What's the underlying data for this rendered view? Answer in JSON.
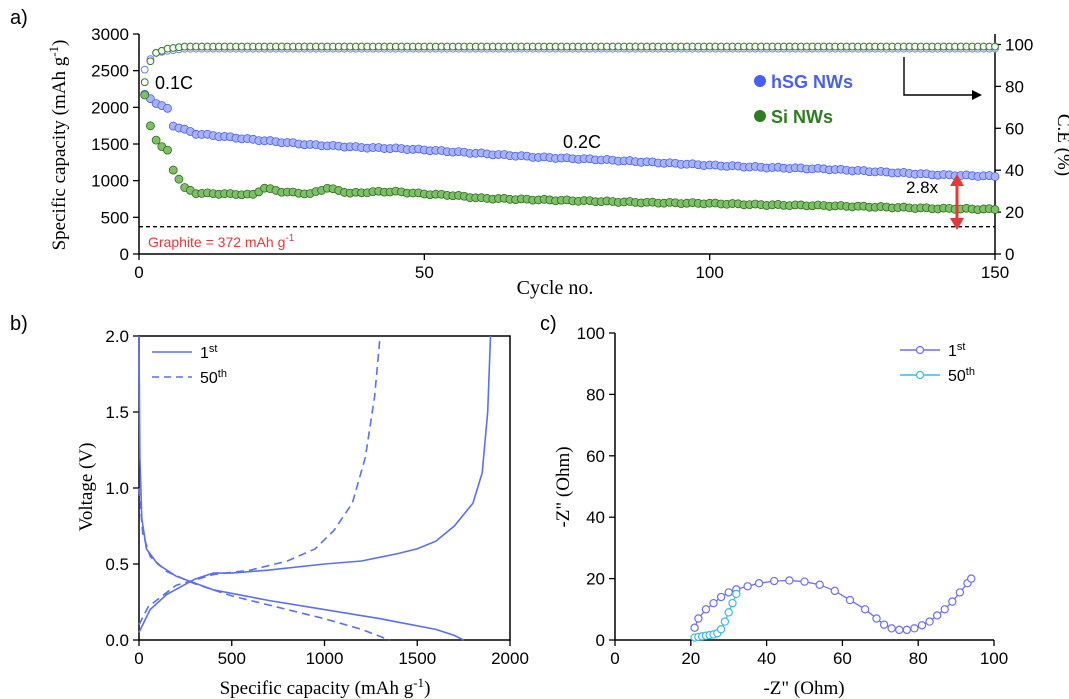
{
  "chart_data": [
    {
      "panel_label": "a)",
      "type": "scatter",
      "xlabel": "Cycle no.",
      "ylabel": "Specific capacity (mAh g",
      "ylabel_sup": "-1",
      "ylabel_tail": ")",
      "y2label": "C.E (%)",
      "xlim": [
        0,
        150
      ],
      "ylim": [
        0,
        3000
      ],
      "y2lim": [
        0,
        105
      ],
      "x_ticks": [
        0,
        50,
        100,
        150
      ],
      "y_ticks": [
        0,
        500,
        1000,
        1500,
        2000,
        2500,
        3000
      ],
      "y2_ticks": [
        0,
        20,
        40,
        60,
        80,
        100
      ],
      "legend": [
        {
          "label": "hSG NWs",
          "color": "#4a5ff0"
        },
        {
          "label": "Si NWs",
          "color": "#2e7d1e"
        }
      ],
      "annotations": {
        "rate1": "0.1C",
        "rate2": "0.2C",
        "ratio": "2.8x",
        "graphite_text": "Graphite = 372 mAh g",
        "graphite_sup": "-1",
        "graphite_value": 372
      },
      "series": [
        {
          "name": "hSG NWs",
          "color": "#6d7ff2",
          "points": [
            [
              1,
              2170
            ],
            [
              2,
              2120
            ],
            [
              3,
              2060
            ],
            [
              4,
              2020
            ],
            [
              5,
              1980
            ],
            [
              6,
              1750
            ],
            [
              10,
              1640
            ],
            [
              20,
              1560
            ],
            [
              30,
              1490
            ],
            [
              40,
              1450
            ],
            [
              45,
              1440
            ],
            [
              50,
              1420
            ],
            [
              60,
              1370
            ],
            [
              70,
              1320
            ],
            [
              80,
              1290
            ],
            [
              90,
              1250
            ],
            [
              100,
              1210
            ],
            [
              110,
              1180
            ],
            [
              120,
              1160
            ],
            [
              130,
              1120
            ],
            [
              140,
              1080
            ],
            [
              150,
              1060
            ]
          ]
        },
        {
          "name": "Si NWs",
          "color": "#2e7d1e",
          "points": [
            [
              1,
              2160
            ],
            [
              2,
              1750
            ],
            [
              3,
              1560
            ],
            [
              4,
              1460
            ],
            [
              5,
              1410
            ],
            [
              6,
              1150
            ],
            [
              8,
              900
            ],
            [
              10,
              830
            ],
            [
              20,
              810
            ],
            [
              22,
              900
            ],
            [
              25,
              850
            ],
            [
              30,
              820
            ],
            [
              33,
              900
            ],
            [
              37,
              830
            ],
            [
              42,
              850
            ],
            [
              45,
              850
            ],
            [
              50,
              820
            ],
            [
              55,
              800
            ],
            [
              60,
              760
            ],
            [
              70,
              740
            ],
            [
              80,
              720
            ],
            [
              90,
              700
            ],
            [
              100,
              690
            ],
            [
              110,
              670
            ],
            [
              120,
              660
            ],
            [
              130,
              640
            ],
            [
              140,
              620
            ],
            [
              150,
              610
            ]
          ]
        },
        {
          "name": "hSG CE",
          "axis": "y2",
          "color": "#6d7ff2",
          "points": [
            [
              1,
              88
            ],
            [
              2,
              93
            ],
            [
              3,
              96
            ],
            [
              5,
              97
            ],
            [
              8,
              98
            ],
            [
              150,
              98
            ]
          ]
        },
        {
          "name": "Si CE",
          "axis": "y2",
          "color": "#2e7d1e",
          "points": [
            [
              1,
              82
            ],
            [
              2,
              92
            ],
            [
              3,
              96
            ],
            [
              5,
              98
            ],
            [
              8,
              99
            ],
            [
              150,
              99
            ]
          ]
        }
      ]
    },
    {
      "panel_label": "b)",
      "type": "line",
      "xlabel": "Specific capacity (mAh g",
      "xlabel_sup": "-1",
      "xlabel_tail": ")",
      "ylabel": "Voltage (V)",
      "xlim": [
        0,
        2000
      ],
      "ylim": [
        0,
        2.0
      ],
      "x_ticks": [
        0,
        500,
        1000,
        1500,
        2000
      ],
      "y_ticks": [
        "0.0",
        "0.5",
        "1.0",
        "1.5",
        "2.0"
      ],
      "legend": [
        {
          "label": "1",
          "sup": "st",
          "style": "solid"
        },
        {
          "label": "50",
          "sup": "th",
          "style": "dashed"
        }
      ],
      "series": [
        {
          "name": "1st discharge",
          "style": "solid",
          "color": "#5b6ff0",
          "points": [
            [
              0,
              2.0
            ],
            [
              5,
              1.2
            ],
            [
              15,
              0.8
            ],
            [
              40,
              0.6
            ],
            [
              100,
              0.5
            ],
            [
              200,
              0.42
            ],
            [
              400,
              0.33
            ],
            [
              700,
              0.26
            ],
            [
              1000,
              0.2
            ],
            [
              1300,
              0.14
            ],
            [
              1600,
              0.07
            ],
            [
              1700,
              0.03
            ],
            [
              1750,
              0.0
            ]
          ]
        },
        {
          "name": "1st charge",
          "style": "solid",
          "color": "#5b6ff0",
          "points": [
            [
              0,
              0.05
            ],
            [
              60,
              0.2
            ],
            [
              150,
              0.3
            ],
            [
              300,
              0.4
            ],
            [
              400,
              0.44
            ],
            [
              500,
              0.44
            ],
            [
              700,
              0.46
            ],
            [
              1000,
              0.5
            ],
            [
              1200,
              0.52
            ],
            [
              1400,
              0.57
            ],
            [
              1500,
              0.6
            ],
            [
              1600,
              0.65
            ],
            [
              1700,
              0.75
            ],
            [
              1800,
              0.9
            ],
            [
              1850,
              1.1
            ],
            [
              1880,
              1.5
            ],
            [
              1895,
              2.0
            ]
          ]
        },
        {
          "name": "50th discharge",
          "style": "dashed",
          "color": "#5b6ff0",
          "points": [
            [
              0,
              1.0
            ],
            [
              20,
              0.7
            ],
            [
              60,
              0.55
            ],
            [
              150,
              0.45
            ],
            [
              300,
              0.37
            ],
            [
              500,
              0.29
            ],
            [
              800,
              0.2
            ],
            [
              1000,
              0.14
            ],
            [
              1200,
              0.07
            ],
            [
              1350,
              0.0
            ]
          ]
        },
        {
          "name": "50th charge",
          "style": "dashed",
          "color": "#5b6ff0",
          "points": [
            [
              0,
              0.1
            ],
            [
              50,
              0.22
            ],
            [
              200,
              0.36
            ],
            [
              400,
              0.43
            ],
            [
              600,
              0.46
            ],
            [
              800,
              0.52
            ],
            [
              950,
              0.6
            ],
            [
              1050,
              0.72
            ],
            [
              1150,
              0.9
            ],
            [
              1220,
              1.2
            ],
            [
              1270,
              1.6
            ],
            [
              1300,
              2.0
            ]
          ]
        }
      ]
    },
    {
      "panel_label": "c)",
      "type": "line",
      "xlabel": "-Z\" (Ohm)",
      "ylabel": "-Z\" (Ohm)",
      "xlim": [
        0,
        100
      ],
      "ylim": [
        0,
        100
      ],
      "x_ticks": [
        0,
        20,
        40,
        60,
        80,
        100
      ],
      "y_ticks": [
        0,
        20,
        40,
        60,
        80,
        100
      ],
      "legend": [
        {
          "label": "1",
          "sup": "st",
          "color": "#6d6ff0"
        },
        {
          "label": "50",
          "sup": "th",
          "color": "#3db9ea"
        }
      ],
      "series": [
        {
          "name": "1st",
          "color": "#6d6ff0",
          "points": [
            [
              21,
              4
            ],
            [
              22,
              7
            ],
            [
              24,
              10
            ],
            [
              26,
              12
            ],
            [
              28,
              14
            ],
            [
              30,
              15.5
            ],
            [
              32,
              16.5
            ],
            [
              35,
              17.5
            ],
            [
              38,
              18.5
            ],
            [
              42,
              19.2
            ],
            [
              46,
              19.4
            ],
            [
              50,
              19
            ],
            [
              54,
              18
            ],
            [
              58,
              16
            ],
            [
              62,
              13
            ],
            [
              66,
              10
            ],
            [
              69,
              7
            ],
            [
              71,
              5
            ],
            [
              73,
              3.8
            ],
            [
              75,
              3.3
            ],
            [
              77,
              3.3
            ],
            [
              79,
              3.8
            ],
            [
              81,
              4.8
            ],
            [
              83,
              6
            ],
            [
              85,
              8
            ],
            [
              87,
              10
            ],
            [
              89,
              12.5
            ],
            [
              91,
              15.5
            ],
            [
              93,
              18.5
            ],
            [
              94,
              20
            ]
          ]
        },
        {
          "name": "50th",
          "color": "#3db9ea",
          "points": [
            [
              21,
              0.8
            ],
            [
              22,
              1
            ],
            [
              23,
              1.2
            ],
            [
              24,
              1.4
            ],
            [
              25,
              1.6
            ],
            [
              26,
              1.8
            ],
            [
              27,
              2.2
            ],
            [
              28,
              3.5
            ],
            [
              29,
              6
            ],
            [
              30,
              9
            ],
            [
              31,
              12
            ],
            [
              32,
              15
            ]
          ]
        }
      ]
    }
  ]
}
